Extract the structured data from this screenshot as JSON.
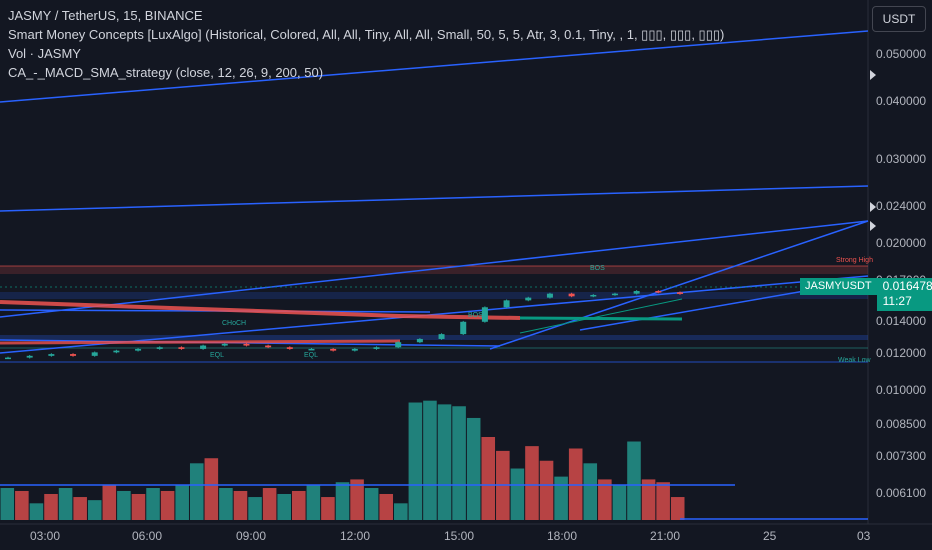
{
  "header": {
    "symbol_line": "JASMY / TetherUS, 15, BINANCE",
    "indicator_smc": "Smart Money Concepts [LuxAlgo] (Historical, Colored, All, All, Tiny, All, All, Small, 50, 5, 5, Atr, 3, 0.1, Tiny, , 1, ▯▯▯, ▯▯▯, ▯▯▯)",
    "indicator_vol": "Vol · JASMY",
    "indicator_macd": "CA_-_MACD_SMA_strategy (close, 12, 26, 9, 200, 50)"
  },
  "currency_button": "USDT",
  "price_axis": {
    "labels": [
      "0.050000",
      "0.040000",
      "0.030000",
      "0.024000",
      "0.020000",
      "0.017000",
      "0.014000",
      "0.012000",
      "0.010000",
      "0.008500",
      "0.007300",
      "0.006100"
    ]
  },
  "time_axis": {
    "labels": [
      "03:00",
      "06:00",
      "09:00",
      "12:00",
      "15:00",
      "18:00",
      "21:00",
      "25",
      "03"
    ]
  },
  "current_price": {
    "symbol": "JASMYUSDT",
    "price": "0.016478",
    "countdown": "11:27"
  },
  "smc_labels": {
    "strong_high": "Strong High",
    "weak_low": "Weak Low",
    "choch": "CHoCH",
    "bos": "BOS",
    "eql": "EQL"
  },
  "colors": {
    "background": "#131722",
    "up": "#26a69a",
    "down": "#ef5350",
    "trendline": "#2962ff",
    "accent_green": "#089981"
  },
  "chart_data": [
    {
      "type": "candlestick",
      "title": "JASMY / TetherUS, 15, BINANCE",
      "y_axis": "log",
      "ylim": [
        0.0112,
        0.058
      ],
      "x": [
        "03:00",
        "06:00",
        "09:00",
        "12:00",
        "15:00",
        "18:00",
        "21:00",
        "25",
        "03"
      ],
      "closes": [
        0.0123,
        0.0124,
        0.0125,
        0.0124,
        0.0126,
        0.0127,
        0.0128,
        0.0129,
        0.0128,
        0.013,
        0.0131,
        0.013,
        0.0129,
        0.0128,
        0.0128,
        0.0127,
        0.0128,
        0.0129,
        0.0132,
        0.0134,
        0.0137,
        0.0145,
        0.0155,
        0.016,
        0.0162,
        0.0165,
        0.0163,
        0.0164,
        0.0165,
        0.0167,
        0.0166,
        0.01648
      ]
    },
    {
      "type": "bar",
      "title": "Vol · JASMY",
      "y_axis": "log",
      "ylim": [
        0.0053,
        0.0107
      ],
      "values": [
        0.0063,
        0.0062,
        0.0058,
        0.0061,
        0.0063,
        0.006,
        0.0059,
        0.0064,
        0.0062,
        0.0061,
        0.0063,
        0.0062,
        0.0064,
        0.0072,
        0.0074,
        0.0063,
        0.0062,
        0.006,
        0.0063,
        0.0061,
        0.0062,
        0.0064,
        0.006,
        0.0065,
        0.0066,
        0.0063,
        0.0061,
        0.0058,
        0.01,
        0.0101,
        0.0099,
        0.0098,
        0.0092,
        0.0083,
        0.0077,
        0.007,
        0.0079,
        0.0073,
        0.0067,
        0.0078,
        0.0072,
        0.0066,
        0.0064,
        0.0081,
        0.0066,
        0.0065,
        0.006
      ],
      "colors": [
        "up",
        "down",
        "up",
        "down",
        "up",
        "down",
        "up",
        "down",
        "up",
        "down",
        "up",
        "down",
        "up",
        "up",
        "down",
        "up",
        "down",
        "up",
        "down",
        "up",
        "down",
        "up",
        "down",
        "up",
        "down",
        "up",
        "down",
        "up",
        "up",
        "up",
        "up",
        "up",
        "up",
        "down",
        "down",
        "up",
        "down",
        "down",
        "up",
        "down",
        "up",
        "down",
        "up",
        "up",
        "down",
        "down",
        "down"
      ]
    }
  ]
}
